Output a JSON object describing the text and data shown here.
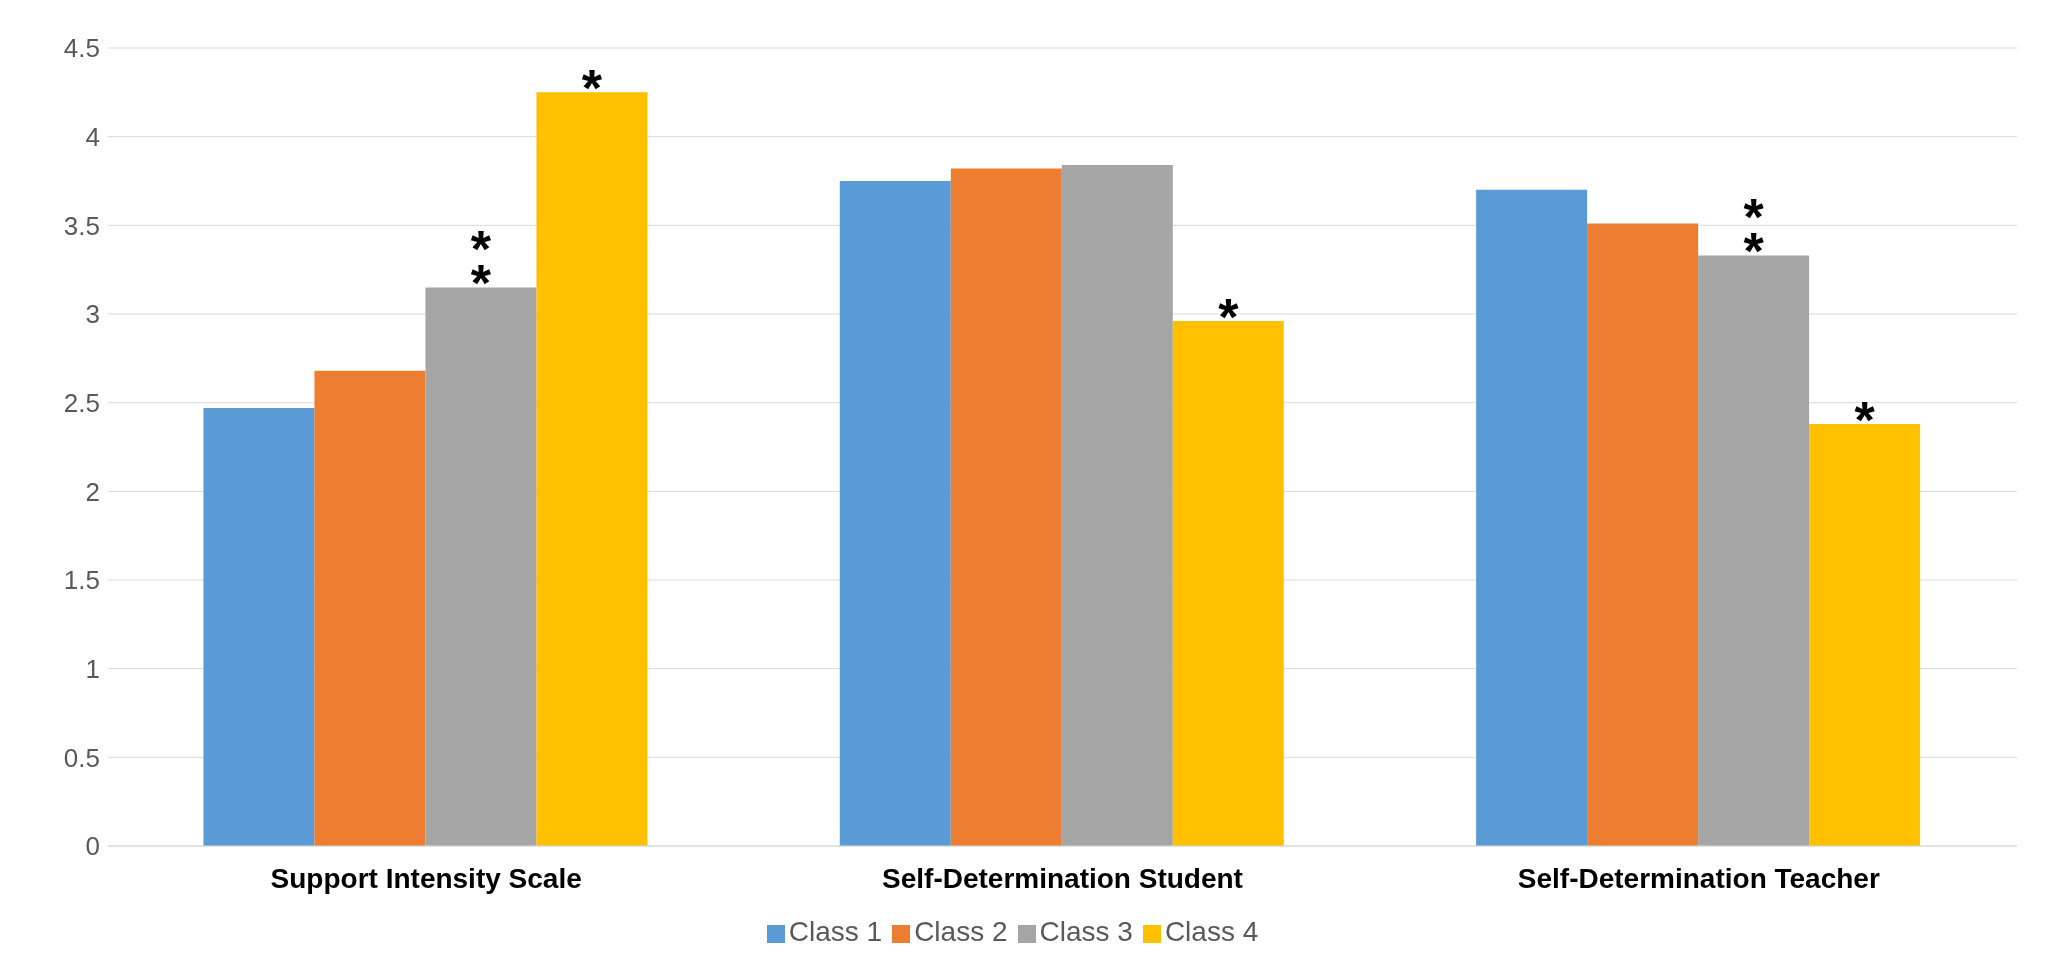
{
  "chart_data": {
    "type": "bar",
    "categories": [
      "Support Intensity Scale",
      "Self-Determination Student",
      "Self-Determination Teacher"
    ],
    "series": [
      {
        "name": "Class 1",
        "color": "#5b9bd5",
        "values": [
          2.47,
          3.75,
          3.7
        ]
      },
      {
        "name": "Class 2",
        "color": "#ed7d31",
        "values": [
          2.68,
          3.82,
          3.51
        ]
      },
      {
        "name": "Class 3",
        "color": "#a5a5a5",
        "values": [
          3.15,
          3.84,
          3.33
        ]
      },
      {
        "name": "Class 4",
        "color": "#ffc000",
        "values": [
          4.25,
          2.96,
          2.38
        ]
      }
    ],
    "ylim": [
      0,
      4.5
    ],
    "yticks": [
      0,
      0.5,
      1,
      1.5,
      2,
      2.5,
      3,
      3.5,
      4,
      4.5
    ],
    "grid": "y",
    "legend": "bottom",
    "annotations": [
      {
        "text": "**",
        "x": "Support Intensity Scale",
        "y": 3.15
      },
      "*",
      {
        "text": "*",
        "x": "Self-Determination Student",
        "y": 2.96
      },
      {
        "text": "**",
        "x": "Self-Determination Teacher",
        "y": 3.33
      },
      {
        "text": "*",
        "x": "Self-Determination Teacher",
        "y": 2.38
      }
    ]
  }
}
